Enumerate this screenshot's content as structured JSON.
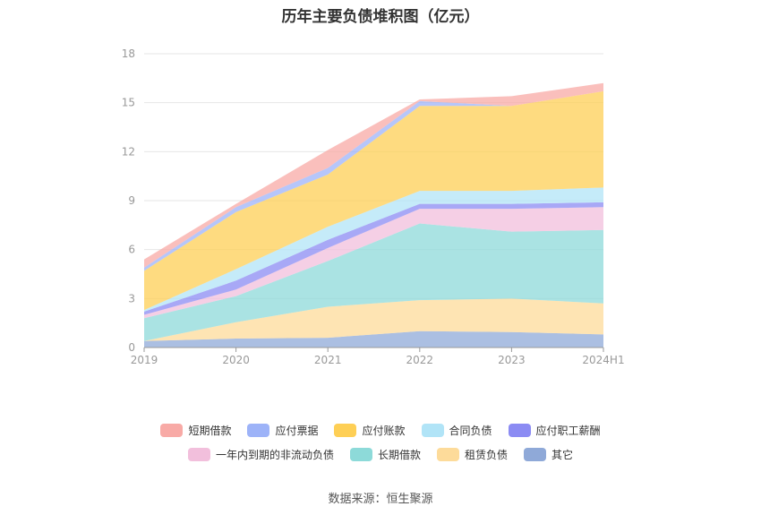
{
  "title": "历年主要负债堆积图（亿元）",
  "source": "数据来源：恒生聚源",
  "chart_data": {
    "type": "area",
    "stacked": true,
    "x": [
      "2019",
      "2020",
      "2021",
      "2022",
      "2023",
      "2024H1"
    ],
    "yticks": [
      0,
      3,
      6,
      9,
      12,
      15,
      18
    ],
    "ylim": [
      0,
      18
    ],
    "grid": true,
    "legend_position": "bottom",
    "series": [
      {
        "name": "其它",
        "color": "#8fa9d8",
        "values": [
          0.4,
          0.55,
          0.6,
          1.0,
          0.95,
          0.8
        ]
      },
      {
        "name": "租赁负债",
        "color": "#fddb9a",
        "values": [
          0.0,
          1.0,
          1.9,
          1.9,
          2.05,
          1.9
        ]
      },
      {
        "name": "长期借款",
        "color": "#8ddad9",
        "values": [
          1.4,
          1.6,
          2.8,
          4.7,
          4.1,
          4.5
        ]
      },
      {
        "name": "一年内到期的非流动负债",
        "color": "#f2bfdc",
        "values": [
          0.2,
          0.4,
          0.8,
          0.9,
          1.4,
          1.4
        ]
      },
      {
        "name": "应付职工薪酬",
        "color": "#8b8bf3",
        "values": [
          0.2,
          0.55,
          0.5,
          0.3,
          0.3,
          0.3
        ]
      },
      {
        "name": "合同负债",
        "color": "#b1e4f7",
        "values": [
          0.1,
          0.7,
          0.8,
          0.8,
          0.8,
          0.9
        ]
      },
      {
        "name": "应付账款",
        "color": "#fecf55",
        "values": [
          2.4,
          3.5,
          3.2,
          5.2,
          5.2,
          5.9
        ]
      },
      {
        "name": "应付票据",
        "color": "#9db3f8",
        "values": [
          0.2,
          0.3,
          0.4,
          0.3,
          0.0,
          0.0
        ]
      },
      {
        "name": "短期借款",
        "color": "#f8aaa6",
        "values": [
          0.5,
          0.2,
          1.1,
          0.1,
          0.6,
          0.5
        ]
      }
    ],
    "legend_order": [
      [
        "短期借款",
        "应付票据",
        "应付账款",
        "合同负债",
        "应付职工薪酬"
      ],
      [
        "一年内到期的非流动负债",
        "长期借款",
        "租赁负债",
        "其它"
      ]
    ]
  }
}
